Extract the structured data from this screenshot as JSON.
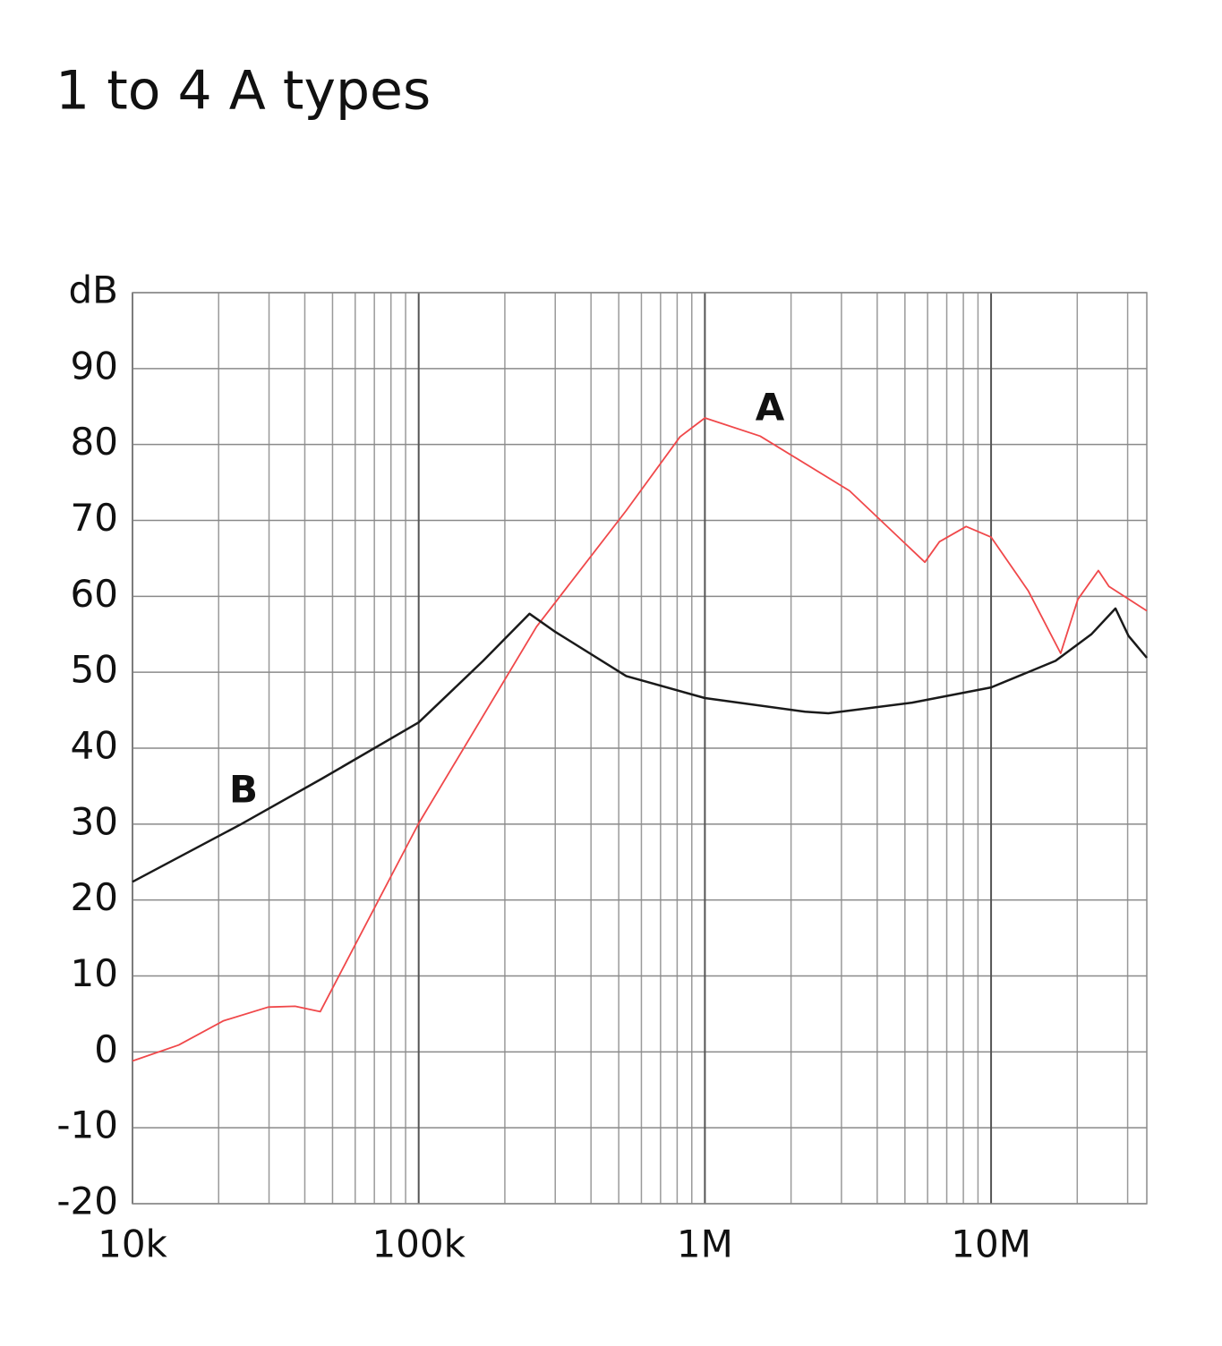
{
  "chart_data": {
    "type": "line",
    "title": "1 to 4 A types",
    "xscale": "log",
    "grid": true,
    "xlim": [
      10000,
      35000000
    ],
    "xticks": [
      {
        "value": 10000,
        "label": "10k"
      },
      {
        "value": 100000,
        "label": "100k"
      },
      {
        "value": 1000000,
        "label": "1M"
      },
      {
        "value": 10000000,
        "label": "10M"
      }
    ],
    "x_minor_ticks": [
      20000,
      30000,
      40000,
      50000,
      60000,
      70000,
      80000,
      90000,
      200000,
      300000,
      400000,
      500000,
      600000,
      700000,
      800000,
      900000,
      2000000,
      3000000,
      4000000,
      5000000,
      6000000,
      7000000,
      8000000,
      9000000,
      20000000,
      30000000
    ],
    "ylim": [
      -20,
      100
    ],
    "yticks": [
      -20,
      -10,
      0,
      10,
      20,
      30,
      40,
      50,
      60,
      70,
      80,
      90,
      {
        "value": 100,
        "label": "dB"
      }
    ],
    "series": [
      {
        "name": "A",
        "color": "#f0484a",
        "x": [
          10000,
          14500,
          20800,
          29800,
          37000,
          45300,
          100000,
          258000,
          531000,
          818000,
          1000000,
          1560000,
          3200000,
          5870000,
          6600000,
          8180000,
          10000000,
          13500000,
          17500000,
          20100000,
          23700000,
          25800000,
          35000000
        ],
        "values": [
          -1.2,
          0.9,
          4.1,
          5.9,
          6.0,
          5.3,
          30.1,
          56,
          71.3,
          81,
          83.5,
          81.1,
          73.9,
          64.5,
          67.2,
          69.2,
          67.8,
          60.7,
          52.5,
          59.6,
          63.4,
          61.3,
          58.1
        ]
      },
      {
        "name": "B",
        "color": "#1a1a1a",
        "x": [
          10000,
          24000,
          46000,
          100000,
          168000,
          244000,
          298000,
          531000,
          1000000,
          2240000,
          2700000,
          5300000,
          10000000,
          16800000,
          22400000,
          27200000,
          30200000,
          35000000
        ],
        "values": [
          22.4,
          30,
          36,
          43.4,
          51.5,
          57.7,
          55.4,
          49.5,
          46.6,
          44.8,
          44.6,
          46,
          48,
          51.5,
          55,
          58.4,
          54.8,
          51.9
        ]
      }
    ]
  }
}
